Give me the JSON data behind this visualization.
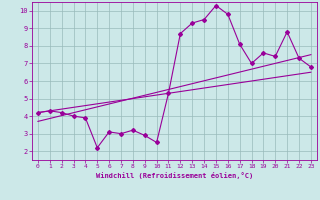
{
  "x": [
    0,
    1,
    2,
    3,
    4,
    5,
    6,
    7,
    8,
    9,
    10,
    11,
    12,
    13,
    14,
    15,
    16,
    17,
    18,
    19,
    20,
    21,
    22,
    23
  ],
  "y": [
    4.2,
    4.3,
    4.2,
    4.0,
    3.9,
    2.2,
    3.1,
    3.0,
    3.2,
    2.9,
    2.5,
    5.3,
    8.7,
    9.3,
    9.5,
    10.3,
    9.8,
    8.1,
    7.0,
    7.6,
    7.4,
    8.8,
    7.3,
    6.8
  ],
  "line_color": "#990099",
  "background_color": "#cce8e8",
  "grid_color": "#99bbbb",
  "xlabel": "Windchill (Refroidissement éolien,°C)",
  "xlim_min": -0.5,
  "xlim_max": 23.5,
  "ylim_min": 1.5,
  "ylim_max": 10.5,
  "xticks": [
    0,
    1,
    2,
    3,
    4,
    5,
    6,
    7,
    8,
    9,
    10,
    11,
    12,
    13,
    14,
    15,
    16,
    17,
    18,
    19,
    20,
    21,
    22,
    23
  ],
  "yticks": [
    2,
    3,
    4,
    5,
    6,
    7,
    8,
    9,
    10
  ],
  "reg_line1": [
    4.2,
    6.5
  ],
  "reg_line2": [
    3.7,
    7.5
  ]
}
